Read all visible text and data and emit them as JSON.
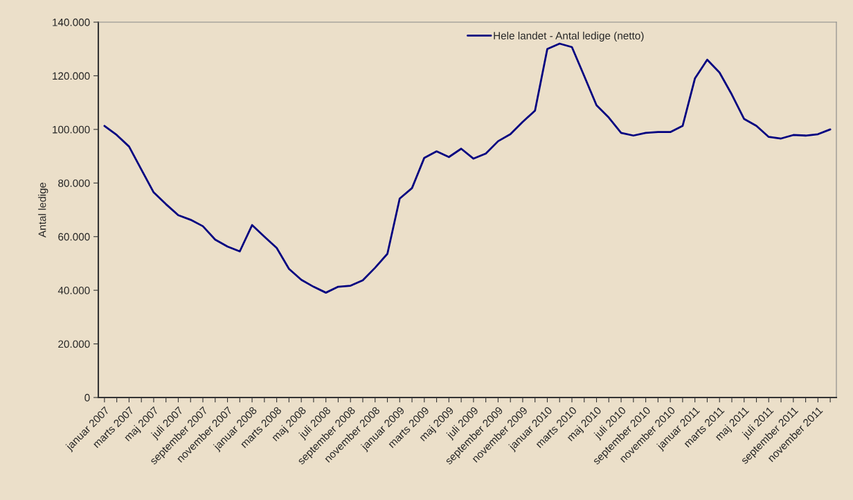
{
  "chart_data": {
    "type": "line",
    "ylabel": "Antal ledige",
    "categories": [
      "januar 2007",
      null,
      "marts 2007",
      null,
      "maj 2007",
      null,
      "juli 2007",
      null,
      "september 2007",
      null,
      "november 2007",
      null,
      "januar 2008",
      null,
      "marts 2008",
      null,
      "maj 2008",
      null,
      "juli 2008",
      null,
      "september 2008",
      null,
      "november 2008",
      null,
      "januar 2009",
      null,
      "marts 2009",
      null,
      "maj 2009",
      null,
      "juli 2009",
      null,
      "september 2009",
      null,
      "november 2009",
      null,
      "januar 2010",
      null,
      "marts 2010",
      null,
      "maj 2010",
      null,
      "juli 2010",
      null,
      "september 2010",
      null,
      "november 2010",
      null,
      "januar 2011",
      null,
      "marts 2011",
      null,
      "maj 2011",
      null,
      "juli 2011",
      null,
      "september 2011",
      null,
      "november 2011",
      null
    ],
    "series": [
      {
        "name": "Hele landet - Antal ledige (netto)",
        "color": "#000080",
        "values": [
          101300,
          97900,
          93600,
          85000,
          76500,
          72100,
          68000,
          66300,
          63900,
          58900,
          56300,
          54500,
          64300,
          60000,
          55800,
          48000,
          43900,
          41300,
          39100,
          41300,
          41700,
          43700,
          48400,
          53600,
          74200,
          78100,
          89400,
          91800,
          89700,
          92800,
          89100,
          91000,
          95600,
          98200,
          102800,
          107000,
          130000,
          132000,
          130700,
          119900,
          109000,
          104400,
          98700,
          97700,
          98700,
          99000,
          99000,
          101300,
          119000,
          126000,
          121200,
          113000,
          103900,
          101300,
          97200,
          96600,
          97900,
          97700,
          98200,
          100000
        ]
      }
    ],
    "ylim": [
      0,
      140000
    ],
    "yticks": [
      0,
      {
        "value": 20000,
        "label": "20.000"
      },
      {
        "value": 40000,
        "label": "40.000"
      },
      {
        "value": 60000,
        "label": "60.000"
      },
      {
        "value": 80000,
        "label": "80.000"
      },
      {
        "value": 100000,
        "label": "100.000"
      },
      {
        "value": 120000,
        "label": "120.000"
      },
      {
        "value": 140000,
        "label": "140.000"
      }
    ],
    "legend": "top",
    "marker": "none",
    "line_style": "solid"
  }
}
